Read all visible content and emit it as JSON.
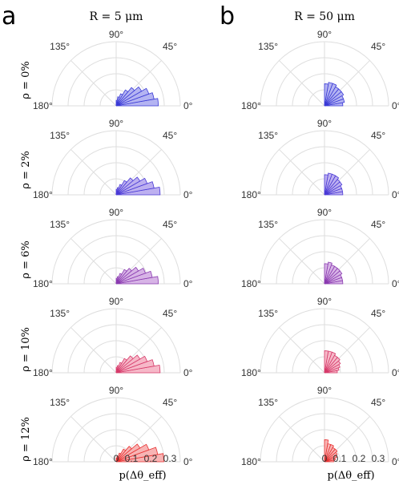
{
  "panel_labels": [
    "a",
    "b"
  ],
  "columns": [
    {
      "title": "R = 5 μm"
    },
    {
      "title": "R = 50 μm"
    }
  ],
  "rows": [
    {
      "label": "ρ = 0%",
      "color": "#3a3ad6",
      "fill": "#b4b4f2"
    },
    {
      "label": "ρ = 2%",
      "color": "#4a3ad6",
      "fill": "#bdb0f0"
    },
    {
      "label": "ρ = 6%",
      "color": "#8a3ab0",
      "fill": "#d7b4e6"
    },
    {
      "label": "ρ = 10%",
      "color": "#d63a6a",
      "fill": "#f6b8c8"
    },
    {
      "label": "ρ = 12%",
      "color": "#e83030",
      "fill": "#f8b4b4"
    }
  ],
  "angle_ticks": [
    "180°",
    "135°",
    "90°",
    "45°",
    "0°"
  ],
  "radial_ticks": [
    "0",
    "0.1",
    "0.2",
    "0.3"
  ],
  "xlabel": "p(Δθ_eff)",
  "chart_data": {
    "type": "polar-histogram",
    "r_max": 0.35,
    "radial_ticks": [
      0,
      0.1,
      0.2,
      0.3
    ],
    "bin_edges_deg": [
      0,
      10,
      20,
      30,
      40,
      50,
      60,
      70,
      80,
      90
    ],
    "angle_ticks_deg": [
      180,
      135,
      90,
      45,
      0
    ],
    "series": {
      "R=5": [
        [
          0.23,
          0.21,
          0.19,
          0.16,
          0.13,
          0.1,
          0.07,
          0.05,
          0.03
        ],
        [
          0.24,
          0.21,
          0.18,
          0.15,
          0.12,
          0.09,
          0.06,
          0.04,
          0.03
        ],
        [
          0.23,
          0.2,
          0.17,
          0.14,
          0.11,
          0.09,
          0.06,
          0.04,
          0.03
        ],
        [
          0.24,
          0.21,
          0.18,
          0.15,
          0.12,
          0.09,
          0.06,
          0.04,
          0.03
        ],
        [
          0.26,
          0.23,
          0.19,
          0.15,
          0.11,
          0.08,
          0.05,
          0.03,
          0.02
        ]
      ],
      "R=50": [
        [
          0.1,
          0.11,
          0.11,
          0.12,
          0.12,
          0.12,
          0.13,
          0.13,
          0.12
        ],
        [
          0.1,
          0.1,
          0.1,
          0.11,
          0.11,
          0.12,
          0.12,
          0.12,
          0.11
        ],
        [
          0.1,
          0.1,
          0.1,
          0.11,
          0.11,
          0.11,
          0.11,
          0.12,
          0.11
        ],
        [
          0.07,
          0.08,
          0.09,
          0.1,
          0.11,
          0.11,
          0.12,
          0.12,
          0.12
        ],
        [
          0.05,
          0.06,
          0.07,
          0.08,
          0.09,
          0.09,
          0.1,
          0.1,
          0.12
        ]
      ]
    }
  }
}
